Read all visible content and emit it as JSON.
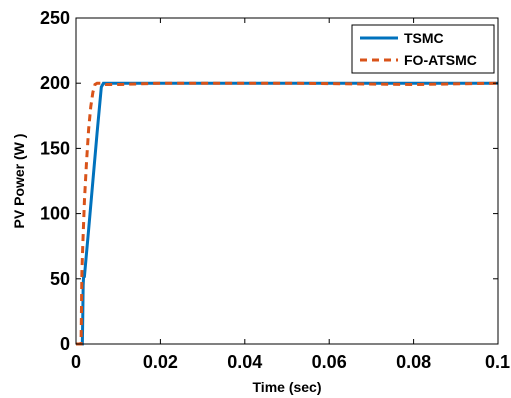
{
  "chart_data": {
    "type": "line",
    "xlabel": "Time (sec)",
    "ylabel": "PV Power (W )",
    "xlim": [
      0,
      0.1
    ],
    "ylim": [
      0,
      250
    ],
    "x_ticks": [
      0,
      0.02,
      0.04,
      0.06,
      0.08,
      0.1
    ],
    "x_tick_labels": [
      "0",
      "0.02",
      "0.04",
      "0.06",
      "0.08",
      "0.1"
    ],
    "y_ticks": [
      0,
      50,
      100,
      150,
      200,
      250
    ],
    "y_tick_labels": [
      "0",
      "50",
      "100",
      "150",
      "200",
      "250"
    ],
    "grid": false,
    "legend_position": "top-right",
    "series": [
      {
        "name": "TSMC",
        "color": "#0072BD",
        "style": "solid",
        "x": [
          0,
          0.0015,
          0.0016,
          0.0017,
          0.0018,
          0.0019,
          0.002,
          0.003,
          0.004,
          0.005,
          0.006,
          0.0065,
          0.007,
          0.01,
          0.05,
          0.1
        ],
        "y": [
          0,
          0,
          20,
          45,
          52,
          52,
          52,
          88,
          125,
          162,
          197,
          200,
          200,
          200,
          200,
          200
        ]
      },
      {
        "name": "FO-ATSMC",
        "color": "#D95319",
        "style": "dashed",
        "x": [
          0,
          0.0012,
          0.0014,
          0.0016,
          0.002,
          0.0025,
          0.003,
          0.0035,
          0.004,
          0.0045,
          0.005,
          0.006,
          0.007,
          0.01,
          0.02,
          0.05,
          0.08,
          0.1
        ],
        "y": [
          0,
          0,
          55,
          75,
          110,
          140,
          165,
          182,
          193,
          199,
          200,
          200,
          199,
          199,
          200,
          200,
          199,
          200
        ]
      }
    ]
  }
}
